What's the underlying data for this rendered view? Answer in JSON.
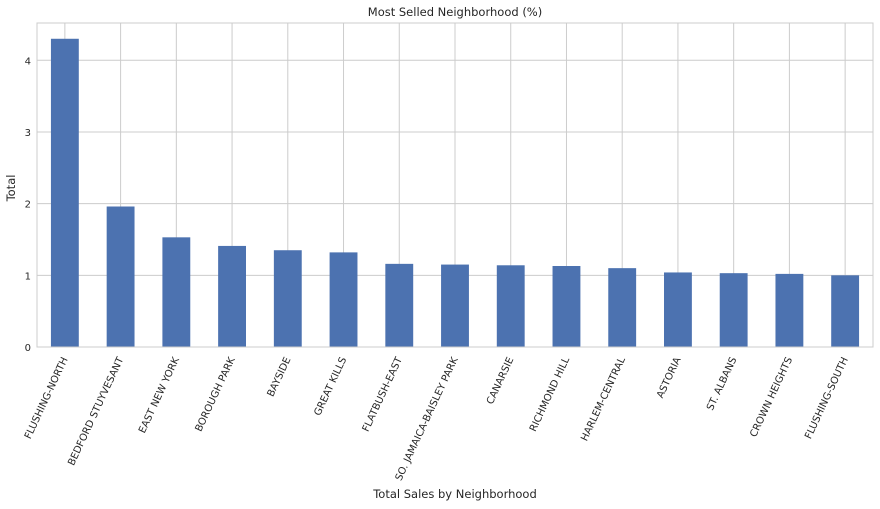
{
  "chart_data": {
    "type": "bar",
    "title": "Most Selled Neighborhood (%)",
    "xlabel": "Total Sales by Neighborhood",
    "ylabel": "Total",
    "ylim": [
      0,
      4.52
    ],
    "yticks": [
      "0",
      "1",
      "2",
      "3",
      "4"
    ],
    "grid": true,
    "legend": "none",
    "bar_color": "#4c72b0",
    "categories": [
      "FLUSHING-NORTH",
      "BEDFORD STUYVESANT",
      "EAST NEW YORK",
      "BOROUGH PARK",
      "BAYSIDE",
      "GREAT KILLS",
      "FLATBUSH-EAST",
      "SO. JAMAICA-BAISLEY PARK",
      "CANARSIE",
      "RICHMOND HILL",
      "HARLEM-CENTRAL",
      "ASTORIA",
      "ST. ALBANS",
      "CROWN HEIGHTS",
      "FLUSHING-SOUTH"
    ],
    "values": [
      4.3,
      1.96,
      1.53,
      1.41,
      1.35,
      1.32,
      1.16,
      1.15,
      1.14,
      1.13,
      1.1,
      1.04,
      1.03,
      1.02,
      1.0
    ]
  }
}
